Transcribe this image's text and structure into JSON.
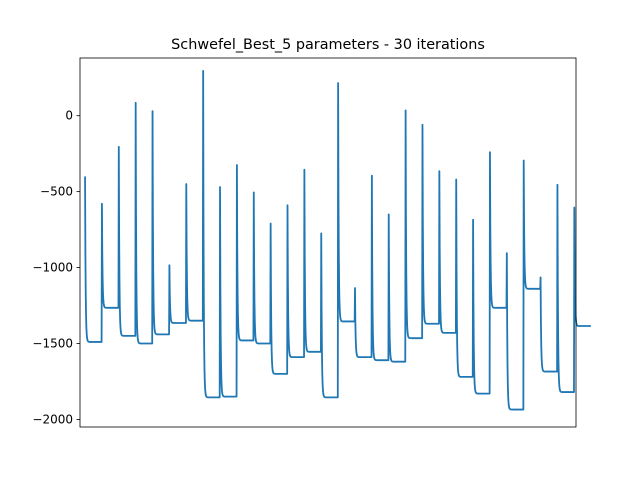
{
  "chart_data": {
    "type": "line",
    "title": "Schwefel_Best_5 parameters - 30 iterations",
    "xlabel": "",
    "ylabel": "",
    "x_ticks_visible": false,
    "ylim": [
      -2050,
      380
    ],
    "xlim": [
      -15,
      1455
    ],
    "yticks": [
      {
        "value": 0,
        "label": "0"
      },
      {
        "value": -500,
        "label": "−500"
      },
      {
        "value": -1000,
        "label": "−1000"
      },
      {
        "value": -1500,
        "label": "−1500"
      },
      {
        "value": -2000,
        "label": "−2000"
      }
    ],
    "grid": false,
    "legend": "none",
    "colors": {
      "series": "#1f77b4",
      "frame": "#000000",
      "background": "#ffffff"
    },
    "series": [
      {
        "runs_per_segment": 50,
        "runs": [
          {
            "start": -400,
            "end": -1490
          },
          {
            "start": -580,
            "end": -1265
          },
          {
            "start": -205,
            "end": -1450
          },
          {
            "start": 85,
            "end": -1500
          },
          {
            "start": 30,
            "end": -1440
          },
          {
            "start": -985,
            "end": -1365
          },
          {
            "start": -450,
            "end": -1350
          },
          {
            "start": 295,
            "end": -1855
          },
          {
            "start": -470,
            "end": -1850
          },
          {
            "start": -325,
            "end": -1480
          },
          {
            "start": -505,
            "end": -1500
          },
          {
            "start": -710,
            "end": -1700
          },
          {
            "start": -590,
            "end": -1590
          },
          {
            "start": -355,
            "end": -1555
          },
          {
            "start": -775,
            "end": -1855
          },
          {
            "start": 215,
            "end": -1355
          },
          {
            "start": -1135,
            "end": -1590
          },
          {
            "start": -395,
            "end": -1610
          },
          {
            "start": -650,
            "end": -1620
          },
          {
            "start": 35,
            "end": -1465
          },
          {
            "start": -60,
            "end": -1370
          },
          {
            "start": -365,
            "end": -1430
          },
          {
            "start": -420,
            "end": -1720
          },
          {
            "start": -685,
            "end": -1830
          },
          {
            "start": -240,
            "end": -1265
          },
          {
            "start": -905,
            "end": -1935
          },
          {
            "start": -295,
            "end": -1140
          },
          {
            "start": -1065,
            "end": -1685
          },
          {
            "start": -455,
            "end": -1820
          },
          {
            "start": -605,
            "end": -1385
          }
        ]
      }
    ]
  }
}
